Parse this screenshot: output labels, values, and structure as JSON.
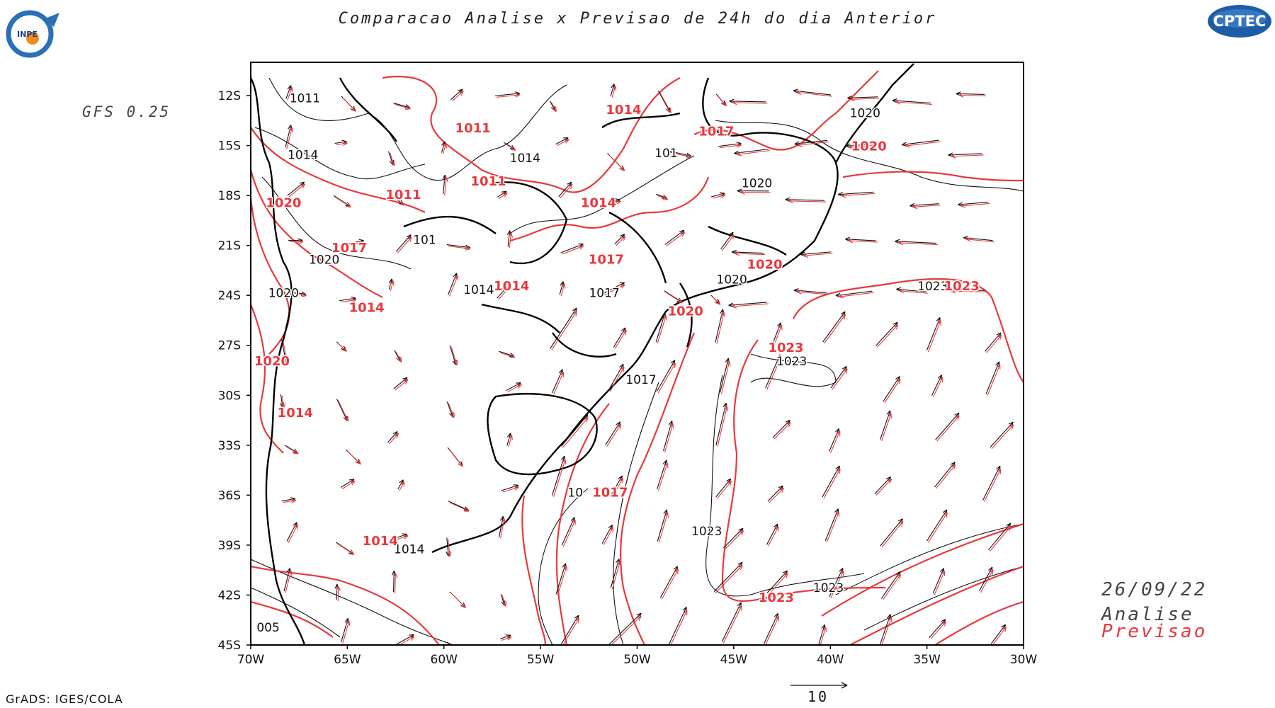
{
  "title": "Comparacao Analise x Previsao de 24h do dia Anterior",
  "model": "GFS 0.25",
  "date": "26/09/22",
  "legend": {
    "analysis_label": "Analise",
    "forecast_label": "Previsao",
    "analysis_color": "#111111",
    "forecast_color": "#e8383d"
  },
  "credit": "GrADS: IGES/COLA",
  "logos": {
    "left": "INPE",
    "right": "CPTEC"
  },
  "vector_reference": {
    "label": "10"
  },
  "map": {
    "lon_range": [
      -70,
      -30
    ],
    "lat_range": [
      -45,
      -10
    ],
    "x_ticks": [
      "70W",
      "65W",
      "60W",
      "55W",
      "50W",
      "45W",
      "40W",
      "35W",
      "30W"
    ],
    "y_ticks": [
      "12S",
      "15S",
      "18S",
      "21S",
      "24S",
      "27S",
      "30S",
      "33S",
      "36S",
      "39S",
      "42S",
      "45S"
    ],
    "analysis_labels": [
      {
        "text": "1011",
        "lon": -67.2,
        "lat": -12.4
      },
      {
        "text": "1014",
        "lon": -67.3,
        "lat": -15.8
      },
      {
        "text": "1014",
        "lon": -55.8,
        "lat": -16.0
      },
      {
        "text": "101",
        "lon": -48.5,
        "lat": -15.7
      },
      {
        "text": "1020",
        "lon": -38.2,
        "lat": -13.3
      },
      {
        "text": "1020",
        "lon": -43.8,
        "lat": -17.5
      },
      {
        "text": "101",
        "lon": -61.0,
        "lat": -20.9
      },
      {
        "text": "1020",
        "lon": -66.2,
        "lat": -22.1
      },
      {
        "text": "1020",
        "lon": -68.3,
        "lat": -24.1
      },
      {
        "text": "1014",
        "lon": -58.2,
        "lat": -23.9
      },
      {
        "text": "1017",
        "lon": -51.7,
        "lat": -24.1
      },
      {
        "text": "1020",
        "lon": -45.1,
        "lat": -23.3
      },
      {
        "text": "1023",
        "lon": -34.7,
        "lat": -23.7
      },
      {
        "text": "1023",
        "lon": -42.0,
        "lat": -28.2
      },
      {
        "text": "1017",
        "lon": -49.8,
        "lat": -29.3
      },
      {
        "text": "10",
        "lon": -53.2,
        "lat": -36.1
      },
      {
        "text": "1023",
        "lon": -46.4,
        "lat": -38.4
      },
      {
        "text": "1014",
        "lon": -61.8,
        "lat": -39.5
      },
      {
        "text": "1023",
        "lon": -40.1,
        "lat": -41.8
      },
      {
        "text": "005",
        "lon": -69.1,
        "lat": -44.2
      }
    ],
    "forecast_labels": [
      {
        "text": "1014",
        "lon": -50.7,
        "lat": -13.1
      },
      {
        "text": "1011",
        "lon": -58.5,
        "lat": -14.2
      },
      {
        "text": "1017",
        "lon": -45.9,
        "lat": -14.4
      },
      {
        "text": "1020",
        "lon": -38.0,
        "lat": -15.3
      },
      {
        "text": "1011",
        "lon": -57.7,
        "lat": -17.4
      },
      {
        "text": "1011",
        "lon": -62.1,
        "lat": -18.2
      },
      {
        "text": "1020",
        "lon": -68.3,
        "lat": -18.7
      },
      {
        "text": "1014",
        "lon": -52.0,
        "lat": -18.7
      },
      {
        "text": "1017",
        "lon": -64.9,
        "lat": -21.4
      },
      {
        "text": "1017",
        "lon": -51.6,
        "lat": -22.1
      },
      {
        "text": "1020",
        "lon": -43.4,
        "lat": -22.4
      },
      {
        "text": "1014",
        "lon": -56.5,
        "lat": -23.7
      },
      {
        "text": "1023",
        "lon": -33.2,
        "lat": -23.7
      },
      {
        "text": "1014",
        "lon": -64.0,
        "lat": -25.0
      },
      {
        "text": "1020",
        "lon": -47.5,
        "lat": -25.2
      },
      {
        "text": "1023",
        "lon": -42.3,
        "lat": -27.4
      },
      {
        "text": "1020",
        "lon": -68.9,
        "lat": -28.2
      },
      {
        "text": "1014",
        "lon": -67.7,
        "lat": -31.3
      },
      {
        "text": "1017",
        "lon": -51.4,
        "lat": -36.1
      },
      {
        "text": "1014",
        "lon": -63.3,
        "lat": -39.0
      },
      {
        "text": "1023",
        "lon": -42.8,
        "lat": -42.4
      }
    ]
  }
}
